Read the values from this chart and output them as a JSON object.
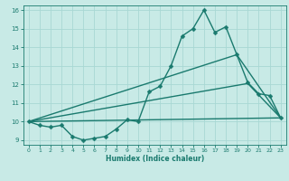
{
  "xlabel": "Humidex (Indice chaleur)",
  "background_color": "#c8eae6",
  "line_color": "#1a7a6e",
  "grid_color": "#a8d8d4",
  "xlim": [
    -0.5,
    23.5
  ],
  "ylim": [
    8.75,
    16.25
  ],
  "xticks": [
    0,
    1,
    2,
    3,
    4,
    5,
    6,
    7,
    8,
    9,
    10,
    11,
    12,
    13,
    14,
    15,
    16,
    17,
    18,
    19,
    20,
    21,
    22,
    23
  ],
  "yticks": [
    9,
    10,
    11,
    12,
    13,
    14,
    15,
    16
  ],
  "line1_x": [
    0,
    1,
    2,
    3,
    4,
    5,
    6,
    7,
    8,
    9,
    10,
    11,
    12,
    13,
    14,
    15,
    16,
    17,
    18,
    19,
    20,
    21,
    22,
    23
  ],
  "line1_y": [
    10.0,
    9.8,
    9.7,
    9.8,
    9.2,
    9.0,
    9.1,
    9.2,
    9.6,
    10.1,
    10.0,
    11.6,
    11.9,
    13.0,
    14.6,
    15.0,
    16.0,
    14.8,
    15.1,
    13.6,
    12.1,
    11.5,
    11.4,
    10.2
  ],
  "line2_x": [
    0,
    23
  ],
  "line2_y": [
    10.0,
    10.2
  ],
  "line3_x": [
    0,
    19,
    23
  ],
  "line3_y": [
    10.0,
    13.6,
    10.2
  ],
  "line4_x": [
    0,
    20,
    23
  ],
  "line4_y": [
    10.0,
    12.05,
    10.2
  ],
  "marker_size": 2.5,
  "linewidth": 1.0
}
